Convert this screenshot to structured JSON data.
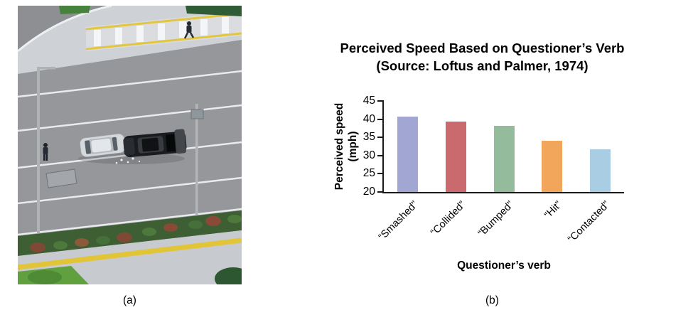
{
  "figure": {
    "caption_a": "(a)",
    "caption_b": "(b)"
  },
  "chart_data": {
    "type": "bar",
    "title_line1": "Perceived Speed Based on Questioner’s Verb",
    "title_line2": "(Source: Loftus and Palmer, 1974)",
    "ylabel_line1": "Perceived speed",
    "ylabel_line2": "(mph)",
    "xlabel": "Questioner’s verb",
    "categories": [
      "“Smashed”",
      "“Collided”",
      "“Bumped”",
      "“Hit”",
      "“Contacted”"
    ],
    "values": [
      40.8,
      39.3,
      38.1,
      34.0,
      31.8
    ],
    "bar_colors": [
      "#a1a6d2",
      "#cb6a6e",
      "#95bb9d",
      "#f2a65c",
      "#a9cee3"
    ],
    "ylim": [
      20,
      45
    ],
    "yticks": [
      20,
      25,
      30,
      35,
      40,
      45
    ],
    "grid": false,
    "legend": false
  }
}
